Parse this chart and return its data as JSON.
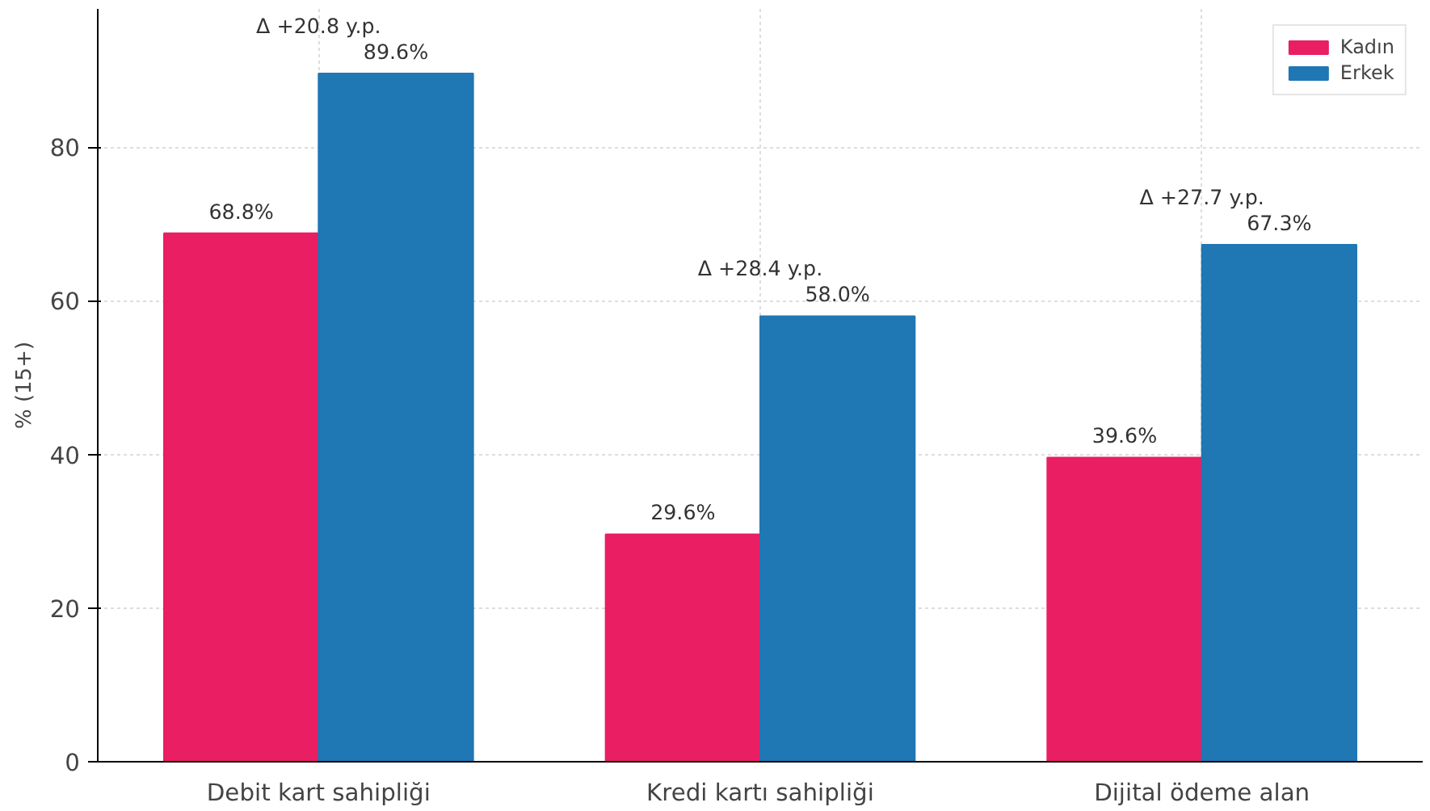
{
  "chart_data": {
    "type": "bar",
    "ylabel": "% (15+)",
    "categories": [
      "Debit kart sahipliği",
      "Kredi kartı sahipliği",
      "Dijital ödeme alan"
    ],
    "series": [
      {
        "name": "Kadın",
        "color": "#e91e63",
        "values": [
          68.8,
          29.6,
          39.6
        ]
      },
      {
        "name": "Erkek",
        "color": "#1f77b4",
        "values": [
          89.6,
          58.0,
          67.3
        ]
      }
    ],
    "value_labels": [
      [
        "68.8%",
        "29.6%",
        "39.6%"
      ],
      [
        "89.6%",
        "58.0%",
        "67.3%"
      ]
    ],
    "annotations": [
      "Δ +20.8 y.p.",
      "Δ +28.4 y.p.",
      "Δ +27.7 y.p."
    ],
    "ylim": [
      0,
      98
    ],
    "yticks": [
      0,
      20,
      40,
      60,
      80
    ],
    "grid": true,
    "legend": "top right"
  }
}
